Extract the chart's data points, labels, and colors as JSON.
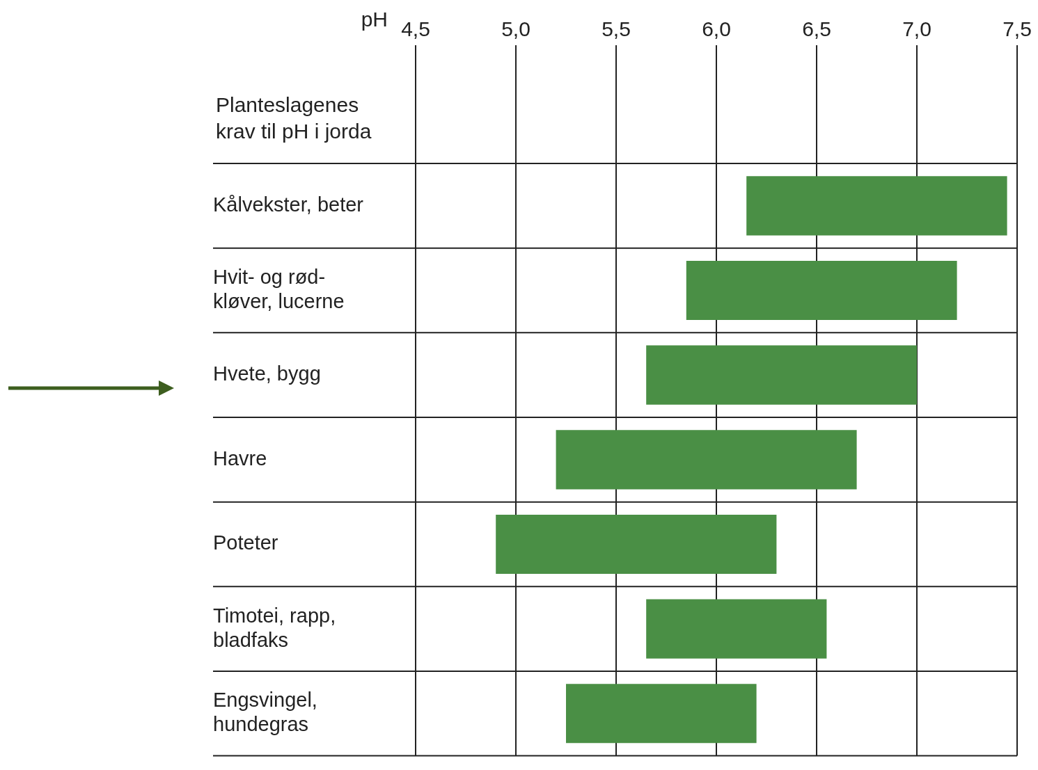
{
  "chart_data": {
    "type": "bar",
    "orientation": "horizontal",
    "title": "Planteslagenes\nkrav til pH i jorda",
    "xlabel": "pH",
    "categories": [
      "Kålvekster, beter",
      "Hvit- og rød-\nkløver, lucerne",
      "Hvete, bygg",
      "Havre",
      "Poteter",
      "Timotei, rapp,\nbladfaks",
      "Engsvingel,\nhundegras"
    ],
    "base": [
      6.15,
      5.85,
      5.65,
      5.2,
      4.9,
      5.65,
      5.25
    ],
    "values": [
      1.3,
      1.35,
      1.35,
      1.5,
      1.4,
      0.9,
      0.95
    ],
    "color": "#4a8f45",
    "xlim": [
      4.5,
      7.5
    ],
    "xticks": [
      {
        "value": 4.5,
        "label": "4,5"
      },
      {
        "value": 5,
        "label": "5,0"
      },
      {
        "value": 5.5,
        "label": "5,5"
      },
      {
        "value": 6,
        "label": "6,0"
      },
      {
        "value": 6.5,
        "label": "6,5"
      },
      {
        "value": 7,
        "label": "7,0"
      },
      {
        "value": 7.5,
        "label": "7,5"
      }
    ],
    "grid": true,
    "legend": false
  }
}
